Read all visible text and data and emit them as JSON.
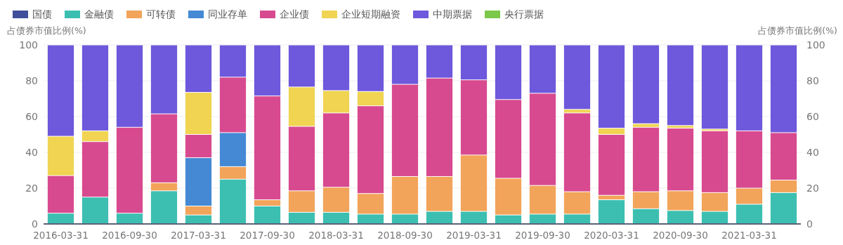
{
  "chart_data": {
    "type": "bar",
    "stacked": true,
    "ylabel": "占债券市值比例(%)",
    "y2label": "占债券市值比例(%)",
    "categories": [
      "2016-03-31",
      null,
      "2016-09-30",
      null,
      "2017-03-31",
      null,
      "2017-09-30",
      null,
      "2018-03-31",
      null,
      "2018-09-30",
      null,
      "2019-03-31",
      null,
      "2019-09-30",
      null,
      "2020-03-31",
      null,
      "2020-09-30",
      null,
      "2021-03-31",
      null
    ],
    "series": [
      {
        "name": "国债",
        "color": "#3f4f9a",
        "values": [
          null,
          null,
          null,
          null,
          null,
          null,
          null,
          null,
          null,
          null,
          null,
          null,
          null,
          null,
          null,
          null,
          null,
          null,
          null,
          null,
          null,
          null
        ]
      },
      {
        "name": "金融债",
        "color": "#3cbfb1",
        "values": [
          6,
          15,
          6,
          18.5,
          5,
          25,
          10,
          6.5,
          6.5,
          5.5,
          5.5,
          7,
          7,
          5,
          5.5,
          5.5,
          13.5,
          8.5,
          7.5,
          7,
          11,
          17.5
        ]
      },
      {
        "name": "可转债",
        "color": "#f2a45a",
        "values": [
          null,
          null,
          null,
          4.5,
          5,
          7,
          3.5,
          12,
          14,
          11.5,
          21,
          19.5,
          31.5,
          20.5,
          16,
          12.5,
          2.5,
          9.5,
          11,
          10.5,
          9,
          7
        ]
      },
      {
        "name": "同业存单",
        "color": "#4589d4",
        "values": [
          null,
          null,
          null,
          null,
          27,
          19,
          null,
          null,
          null,
          null,
          null,
          null,
          null,
          null,
          null,
          null,
          null,
          null,
          null,
          null,
          null,
          null
        ]
      },
      {
        "name": "企业债",
        "color": "#d84a8f",
        "values": [
          21,
          31,
          48,
          38.5,
          13,
          31,
          58,
          36,
          41.5,
          49,
          51.5,
          55,
          42,
          44,
          51.5,
          44,
          34,
          36,
          35,
          34.5,
          32,
          26.5
        ]
      },
      {
        "name": "企业短期融资",
        "color": "#f0d452",
        "values": [
          22,
          6,
          null,
          null,
          23.5,
          null,
          null,
          22,
          12.5,
          8,
          null,
          null,
          null,
          null,
          null,
          2,
          3.5,
          2,
          1.5,
          1,
          null,
          null
        ]
      },
      {
        "name": "中期票据",
        "color": "#6e58dc",
        "values": [
          51,
          48,
          46,
          38.5,
          26.5,
          18,
          28.5,
          23.5,
          25.5,
          26,
          22,
          18.5,
          19.5,
          30.5,
          27,
          36,
          46.5,
          44,
          45,
          47,
          48,
          49
        ]
      },
      {
        "name": "央行票据",
        "color": "#7cc84a",
        "values": [
          null,
          null,
          null,
          null,
          null,
          null,
          null,
          null,
          null,
          null,
          null,
          null,
          null,
          null,
          null,
          null,
          null,
          null,
          null,
          null,
          null,
          null
        ]
      }
    ],
    "ylim": [
      0,
      100
    ],
    "yticks": [
      0,
      20,
      40,
      60,
      80,
      100
    ],
    "y2lim": [
      0,
      100
    ],
    "y2ticks": [
      0,
      20,
      40,
      60,
      80,
      100
    ],
    "grid": "y",
    "legend": "top left"
  }
}
